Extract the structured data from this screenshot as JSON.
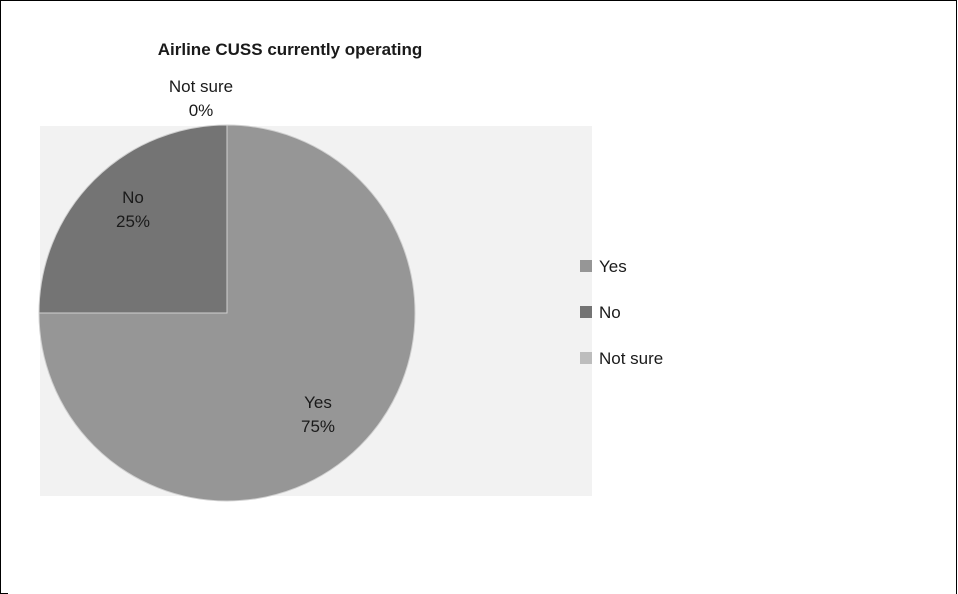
{
  "chart_data": {
    "type": "pie",
    "title": "Airline CUSS currently operating",
    "categories": [
      "Yes",
      "No",
      "Not sure"
    ],
    "values": [
      75,
      25,
      0
    ],
    "slice_labels": [
      {
        "name": "Yes",
        "percent": "75%"
      },
      {
        "name": "No",
        "percent": "25%"
      },
      {
        "name": "Not sure",
        "percent": "0%"
      }
    ],
    "legend": {
      "placement": "right",
      "entries": [
        "Yes",
        "No",
        "Not sure"
      ]
    },
    "colors": {
      "Yes": "#969696",
      "No": "#747474",
      "Not sure": "#bdbdbd",
      "plot_area": "#f2f2f2",
      "slice_edge": "#d0d0d0",
      "text": "#1a1a1a"
    }
  }
}
